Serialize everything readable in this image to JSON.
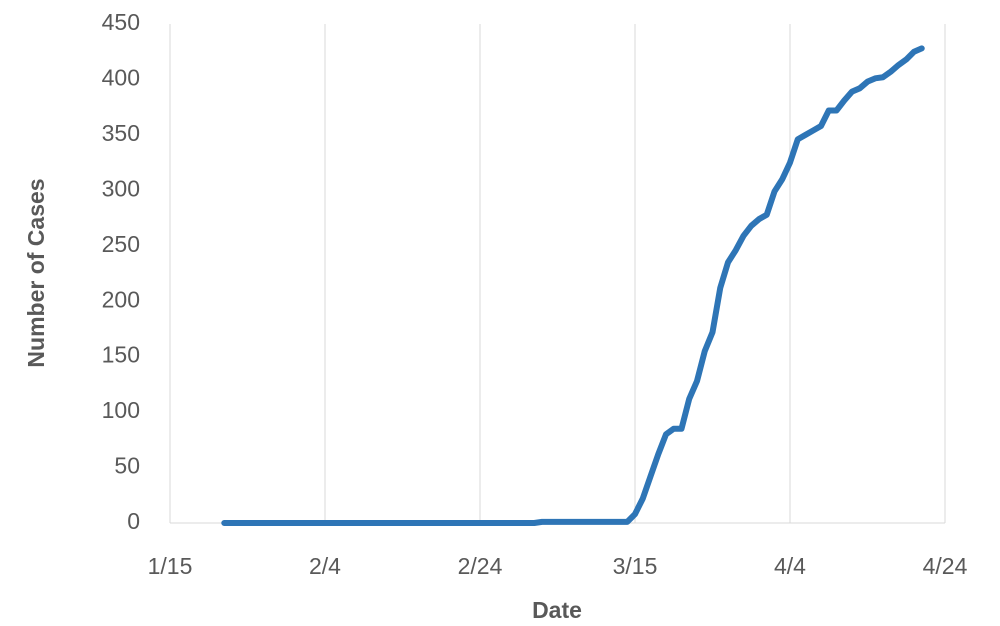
{
  "chart_data": {
    "type": "line",
    "x_label": "Date",
    "y_label": "Number of Cases",
    "x": [
      "1/22",
      "3/2",
      "3/3",
      "3/14",
      "3/15",
      "3/16",
      "3/17",
      "3/18",
      "3/19",
      "3/20",
      "3/21",
      "3/22",
      "3/23",
      "3/24",
      "3/25",
      "3/26",
      "3/27",
      "3/28",
      "3/29",
      "3/30",
      "3/31",
      "4/1",
      "4/2",
      "4/3",
      "4/4",
      "4/5",
      "4/6",
      "4/7",
      "4/8",
      "4/9",
      "4/10",
      "4/11",
      "4/12",
      "4/13",
      "4/14",
      "4/15",
      "4/16",
      "4/17",
      "4/18",
      "4/19",
      "4/20",
      "4/21"
    ],
    "series": [
      {
        "color": "#2e75b6",
        "values": [
          0,
          0,
          1,
          1,
          8,
          22,
          42,
          62,
          80,
          85,
          85,
          112,
          128,
          155,
          172,
          212,
          235,
          246,
          259,
          268,
          274,
          278,
          299,
          310,
          325,
          346,
          350,
          354,
          358,
          372,
          372,
          381,
          389,
          392,
          398,
          401,
          402,
          407,
          413,
          418,
          425,
          428
        ]
      }
    ],
    "xlim": [
      "1/15",
      "4/24"
    ],
    "xticks": [
      "1/15",
      "2/4",
      "2/24",
      "3/15",
      "4/4",
      "4/24"
    ],
    "ylim": [
      0,
      450
    ],
    "yticks": [
      0,
      50,
      100,
      150,
      200,
      250,
      300,
      350,
      400,
      450
    ],
    "grid": "x"
  }
}
